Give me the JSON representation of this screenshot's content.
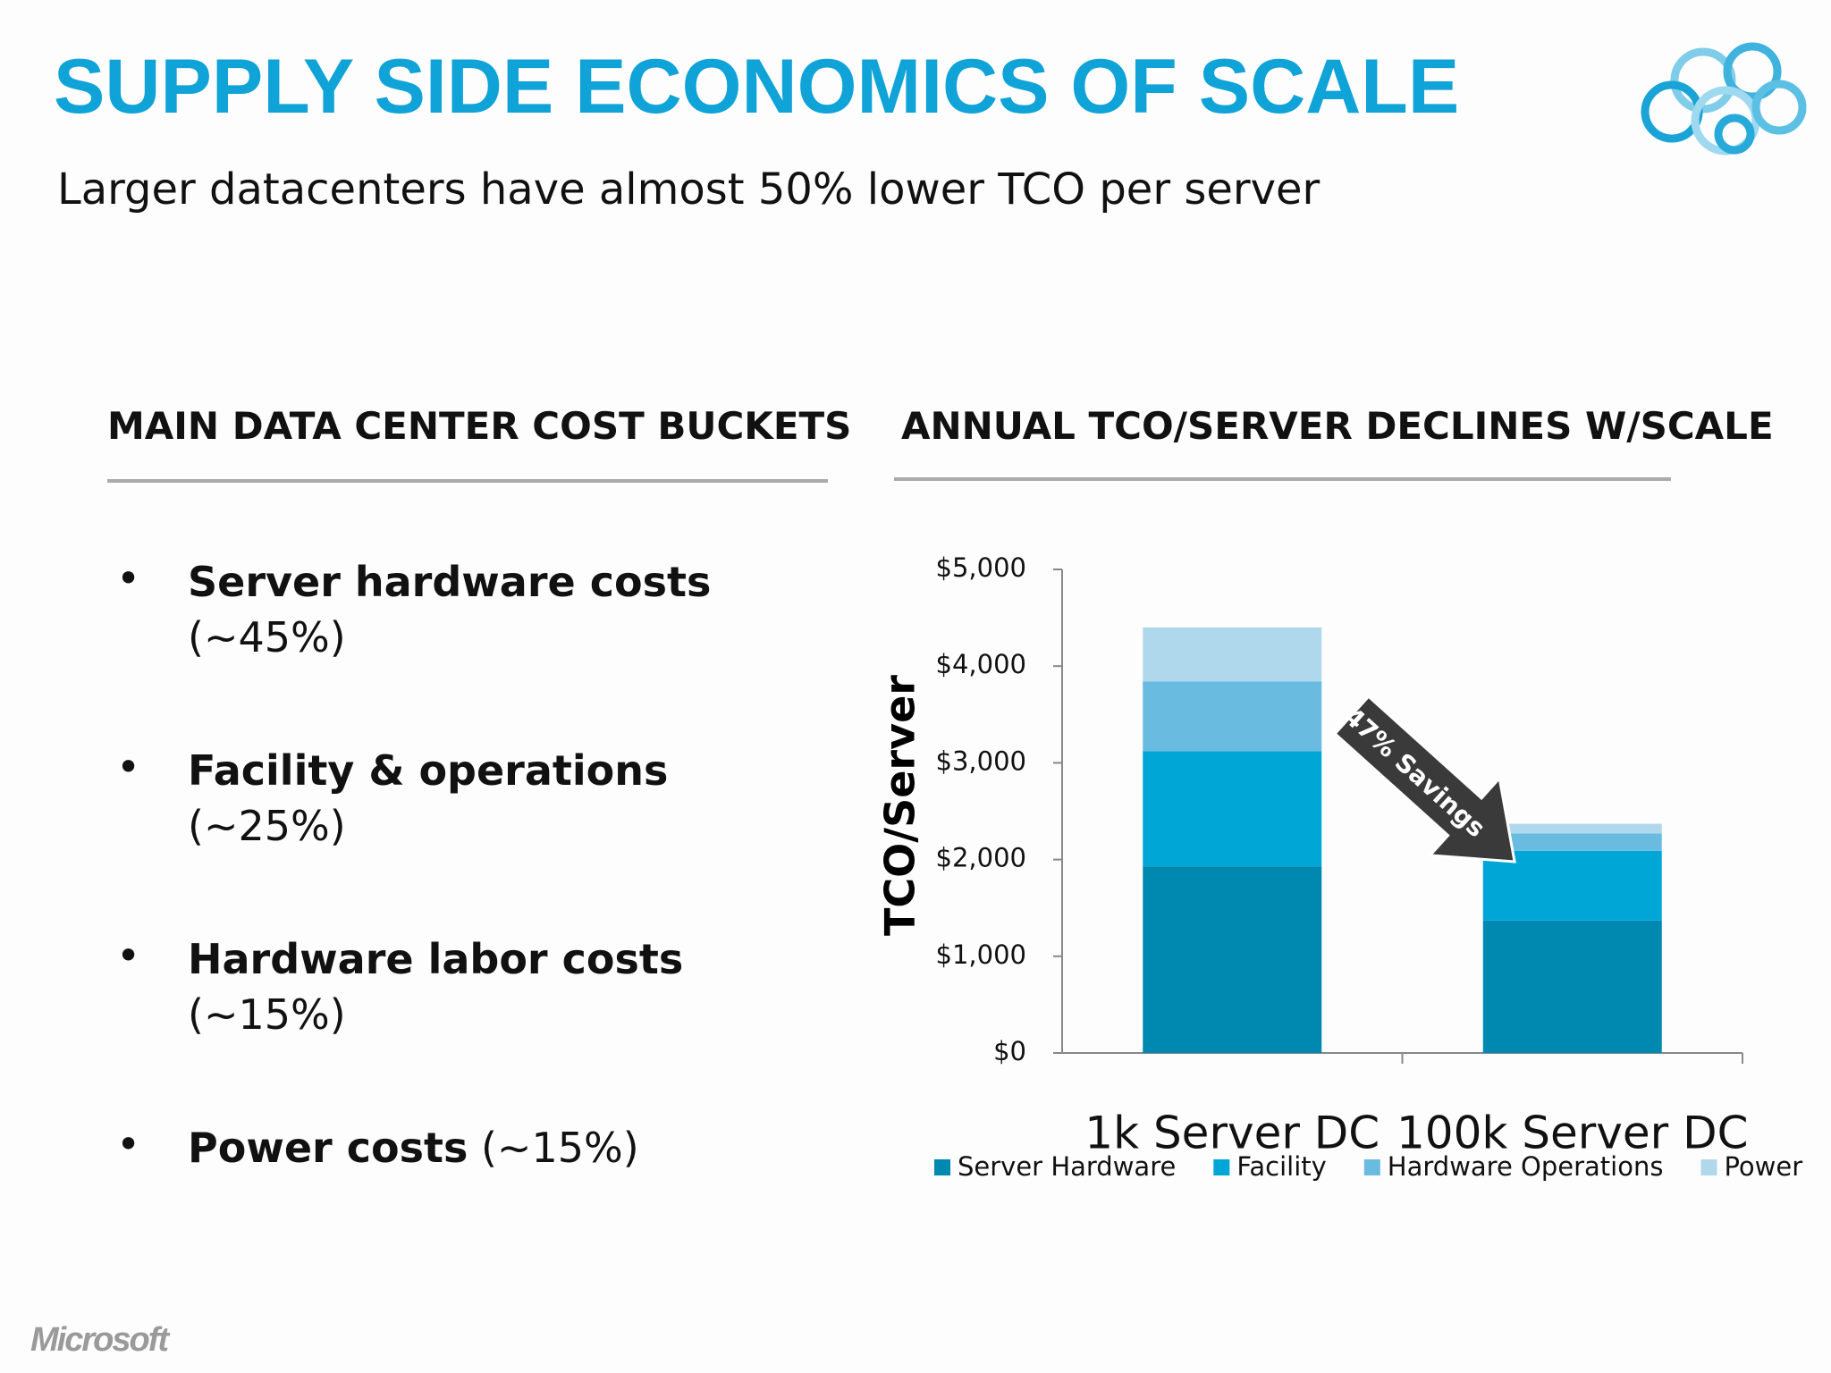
{
  "header": {
    "title": "SUPPLY SIDE ECONOMICS OF SCALE",
    "subtitle": "Larger datacenters have almost 50% lower TCO per server"
  },
  "left": {
    "heading": "MAIN DATA CENTER COST BUCKETS",
    "bullets": [
      {
        "bold": "Server hardware costs",
        "detail": "(~45%)"
      },
      {
        "bold": "Facility & operations",
        "detail": "(~25%)"
      },
      {
        "bold": "Hardware labor costs",
        "detail": "(~15%)"
      },
      {
        "bold": "Power costs",
        "detail": "(~15%)"
      }
    ]
  },
  "right": {
    "heading": "ANNUAL TCO/SERVER DECLINES W/SCALE"
  },
  "chart_data": {
    "type": "stacked-bar",
    "ylabel": "TCO/Server",
    "categories": [
      "1k Server DC",
      "100k Server DC"
    ],
    "series": [
      {
        "name": "Server Hardware",
        "color": "#0089b0",
        "values": [
          1930,
          1370
        ]
      },
      {
        "name": "Facility",
        "color": "#00a6d6",
        "values": [
          1190,
          720
        ]
      },
      {
        "name": "Hardware Operations",
        "color": "#6abbe0",
        "values": [
          720,
          180
        ]
      },
      {
        "name": "Power",
        "color": "#b0d8ec",
        "values": [
          560,
          100
        ]
      }
    ],
    "ylim": [
      0,
      5000
    ],
    "yticks": [
      {
        "value": 0,
        "label": "$0"
      },
      {
        "value": 1000,
        "label": "$1,000"
      },
      {
        "value": 2000,
        "label": "$2,000"
      },
      {
        "value": 3000,
        "label": "$3,000"
      },
      {
        "value": 4000,
        "label": "$4,000"
      },
      {
        "value": 5000,
        "label": "$5,000"
      }
    ],
    "annotation": "47% Savings",
    "legend": "bottom"
  },
  "footer": {
    "logo": "Microsoft"
  }
}
